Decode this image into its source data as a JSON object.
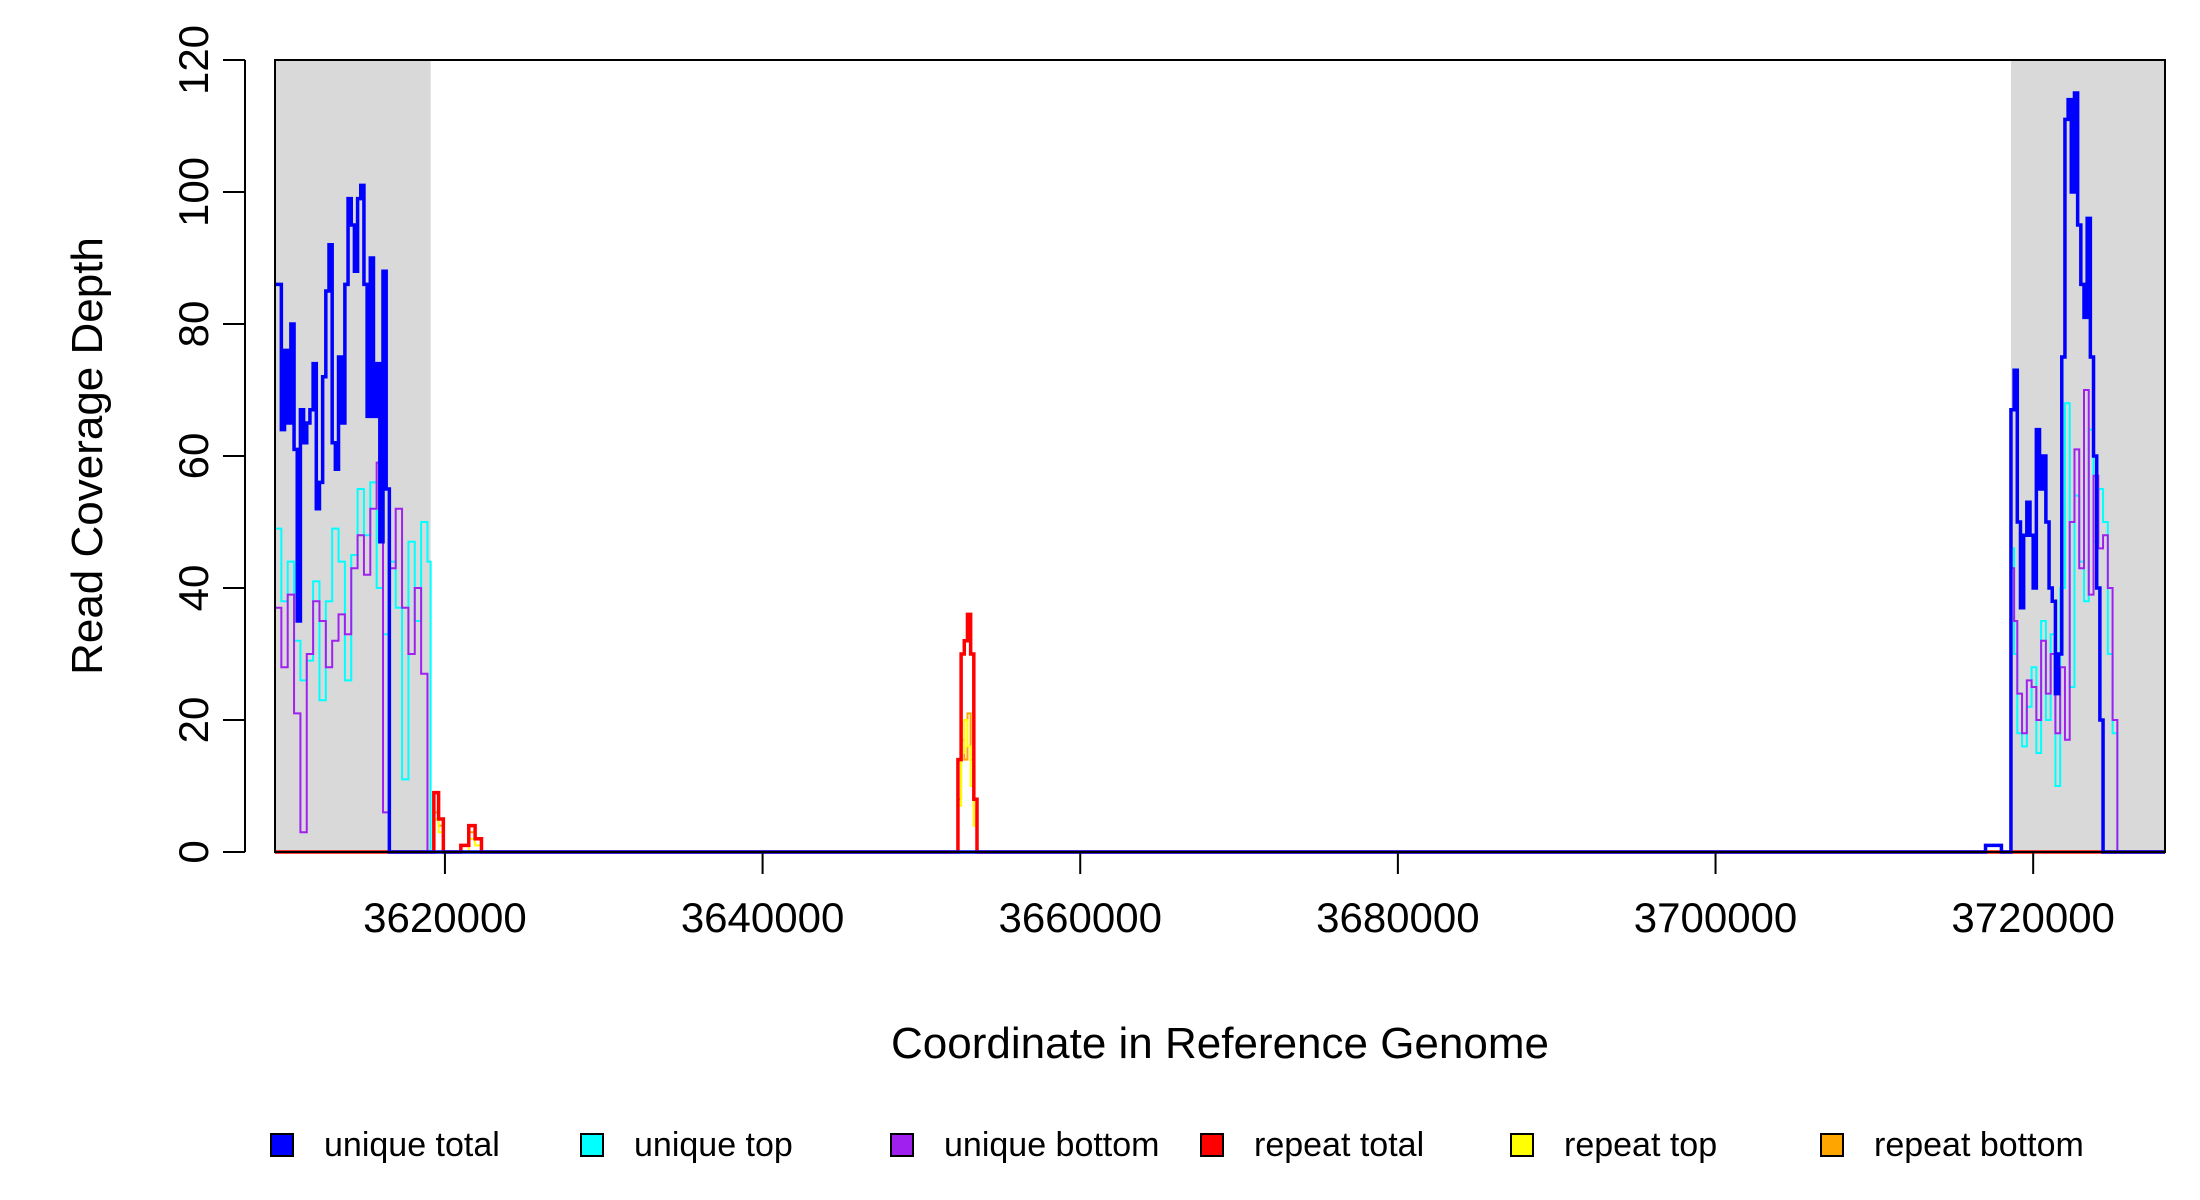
{
  "chart_data": {
    "type": "line",
    "title": "",
    "xlabel": "Coordinate in Reference Genome",
    "ylabel": "Read Coverage Depth",
    "xlim": [
      3609300,
      3728300
    ],
    "ylim": [
      0,
      120
    ],
    "x_ticks": [
      3620000,
      3640000,
      3660000,
      3680000,
      3700000,
      3720000
    ],
    "x_tick_labels": [
      "3620000",
      "3640000",
      "3660000",
      "3680000",
      "3700000",
      "3720000"
    ],
    "y_ticks": [
      0,
      20,
      40,
      60,
      80,
      100,
      120
    ],
    "y_tick_labels": [
      "0",
      "20",
      "40",
      "60",
      "80",
      "100",
      "120"
    ],
    "shaded_regions": [
      [
        3609300,
        3619100
      ],
      [
        3718600,
        3728300
      ]
    ],
    "grid": false,
    "legend_position": "bottom",
    "series": [
      {
        "name": "unique total",
        "color": "#0000FF",
        "x": [
          3609300,
          3609700,
          3609900,
          3610100,
          3610300,
          3610500,
          3610700,
          3610900,
          3611100,
          3611300,
          3611500,
          3611700,
          3611900,
          3612100,
          3612300,
          3612500,
          3612700,
          3612900,
          3613100,
          3613300,
          3613500,
          3613700,
          3613900,
          3614100,
          3614300,
          3614500,
          3614700,
          3614900,
          3615100,
          3615300,
          3615500,
          3615700,
          3615900,
          3616100,
          3616300,
          3616500,
          3616700,
          3616900,
          3617100,
          3617300,
          3617500,
          3617700,
          3617900,
          3618100,
          3618300,
          3618500,
          3618700,
          3618900,
          3619100,
          3619300,
          3619500,
          3640000,
          3652500,
          3700000,
          3717000,
          3717500,
          3718000,
          3718400,
          3718600,
          3718800,
          3719000,
          3719200,
          3719400,
          3719600,
          3719800,
          3720000,
          3720200,
          3720400,
          3720600,
          3720800,
          3721000,
          3721200,
          3721400,
          3721600,
          3721800,
          3722000,
          3722200,
          3722400,
          3722600,
          3722800,
          3723000,
          3723200,
          3723400,
          3723600,
          3723800,
          3724000,
          3724200,
          3724400,
          3724600,
          3724800,
          3725000,
          3725200,
          3725400,
          3725600,
          3726000,
          3728300
        ],
        "values": [
          86,
          64,
          76,
          65,
          80,
          61,
          35,
          67,
          62,
          65,
          67,
          74,
          52,
          56,
          72,
          85,
          92,
          62,
          58,
          75,
          65,
          86,
          99,
          95,
          88,
          99,
          101,
          86,
          66,
          90,
          66,
          74,
          47,
          88,
          55,
          0,
          0,
          0,
          0,
          0,
          0,
          0,
          0,
          0,
          0,
          0,
          0,
          0,
          0,
          0,
          0,
          0,
          0,
          0,
          1,
          1,
          0,
          0,
          67,
          73,
          50,
          37,
          48,
          53,
          48,
          40,
          64,
          55,
          60,
          50,
          40,
          38,
          24,
          30,
          75,
          111,
          114,
          100,
          115,
          95,
          86,
          81,
          96,
          75,
          60,
          40,
          20,
          0,
          0,
          0,
          0,
          0,
          0,
          0,
          0,
          0
        ]
      },
      {
        "name": "unique top",
        "color": "#00FFFF",
        "x": [
          3609300,
          3609700,
          3610100,
          3610500,
          3610900,
          3611300,
          3611700,
          3612100,
          3612500,
          3612900,
          3613300,
          3613700,
          3614100,
          3614500,
          3614900,
          3615300,
          3615700,
          3616100,
          3616500,
          3616900,
          3617300,
          3617700,
          3618100,
          3618500,
          3618900,
          3619100,
          3619500,
          3728300
        ],
        "values": [
          49,
          38,
          44,
          32,
          26,
          29,
          41,
          23,
          38,
          49,
          44,
          26,
          45,
          55,
          48,
          56,
          40,
          33,
          44,
          37,
          11,
          47,
          35,
          50,
          44,
          0,
          0,
          0
        ],
        "x2": [
          3718600,
          3718800,
          3719000,
          3719300,
          3719600,
          3719900,
          3720200,
          3720500,
          3720800,
          3721100,
          3721400,
          3721700,
          3722000,
          3722300,
          3722600,
          3722900,
          3723200,
          3723500,
          3723800,
          3724100,
          3724400,
          3724700,
          3725000,
          3725300,
          3725600,
          3726000
        ],
        "values2": [
          46,
          30,
          18,
          16,
          22,
          28,
          15,
          35,
          20,
          33,
          10,
          40,
          68,
          25,
          54,
          44,
          38,
          64,
          47,
          55,
          50,
          30,
          18,
          0,
          0,
          0
        ]
      },
      {
        "name": "unique bottom",
        "color": "#A020F0",
        "x": [
          3609300,
          3609700,
          3610100,
          3610500,
          3610900,
          3611300,
          3611700,
          3612100,
          3612500,
          3612900,
          3613300,
          3613700,
          3614100,
          3614500,
          3614900,
          3615300,
          3615700,
          3616100,
          3616500,
          3616900,
          3617300,
          3617700,
          3618100,
          3618500,
          3618900,
          3619100,
          3619500,
          3728300
        ],
        "values": [
          37,
          28,
          39,
          21,
          3,
          30,
          38,
          35,
          28,
          32,
          36,
          33,
          43,
          48,
          42,
          52,
          59,
          6,
          43,
          52,
          37,
          30,
          40,
          27,
          0,
          0,
          0,
          0
        ],
        "x2": [
          3718600,
          3718800,
          3719000,
          3719300,
          3719600,
          3719900,
          3720200,
          3720500,
          3720800,
          3721100,
          3721400,
          3721700,
          3722000,
          3722300,
          3722600,
          3722900,
          3723200,
          3723500,
          3723800,
          3724100,
          3724400,
          3724700,
          3725000,
          3725300,
          3725600,
          3726000
        ],
        "values2": [
          43,
          35,
          24,
          18,
          26,
          25,
          20,
          32,
          24,
          30,
          18,
          28,
          17,
          50,
          61,
          43,
          70,
          39,
          57,
          46,
          48,
          40,
          20,
          0,
          0,
          0
        ]
      },
      {
        "name": "repeat total",
        "color": "#FF0000",
        "x": [
          3609300,
          3619100,
          3619300,
          3619600,
          3619900,
          3620300,
          3621000,
          3621500,
          3621900,
          3622300,
          3622700,
          3652000,
          3652300,
          3652500,
          3652700,
          3652900,
          3653100,
          3653300,
          3653500,
          3653700,
          3728300
        ],
        "values": [
          0,
          0,
          9,
          5,
          0,
          0,
          1,
          4,
          2,
          0,
          0,
          0,
          14,
          30,
          32,
          36,
          30,
          8,
          0,
          0,
          0
        ]
      },
      {
        "name": "repeat top",
        "color": "#FFFF00",
        "x": [
          3609300,
          3619100,
          3619300,
          3619600,
          3619900,
          3621500,
          3621900,
          3622300,
          3652000,
          3652300,
          3652500,
          3652700,
          3652900,
          3653100,
          3653300,
          3653500,
          3728300
        ],
        "values": [
          0,
          0,
          5,
          3,
          0,
          2,
          1,
          0,
          0,
          7,
          15,
          20,
          16,
          10,
          4,
          0,
          0
        ]
      },
      {
        "name": "repeat bottom",
        "color": "#FFA500",
        "x": [
          3609300,
          3619100,
          3619300,
          3619600,
          3619900,
          3621000,
          3621500,
          3621900,
          3622300,
          3652000,
          3652300,
          3652500,
          3652700,
          3652900,
          3653100,
          3653300,
          3653500,
          3728300
        ],
        "values": [
          0,
          0,
          6,
          4,
          0,
          1,
          3,
          2,
          0,
          0,
          8,
          17,
          14,
          21,
          14,
          4,
          0,
          0
        ]
      }
    ]
  }
}
